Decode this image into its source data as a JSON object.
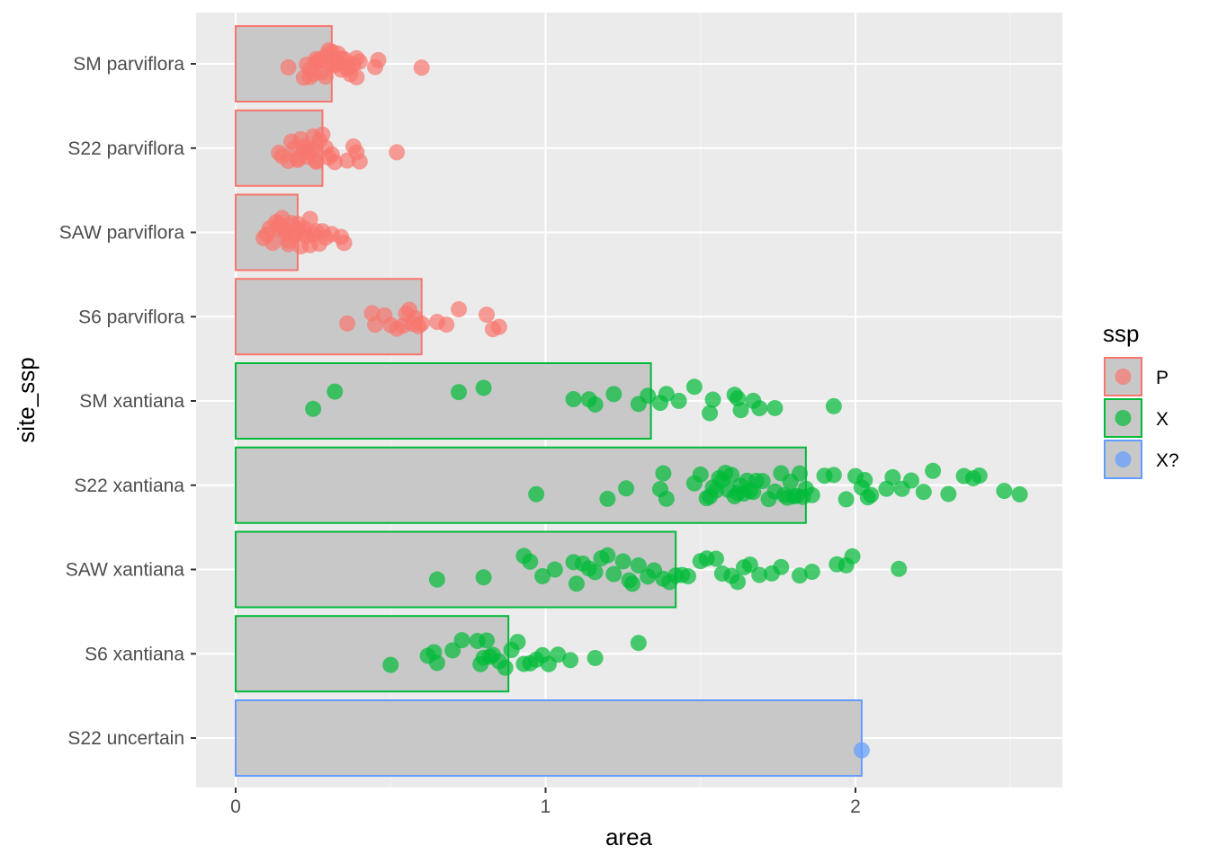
{
  "chart_data": {
    "type": "bar",
    "overlay": "jittered scatter points",
    "orientation": "horizontal",
    "xlabel": "area",
    "ylabel": "site_ssp",
    "xlim": [
      -0.13,
      2.67
    ],
    "xticks": [
      0,
      1,
      2
    ],
    "grid": true,
    "legend": {
      "title": "ssp",
      "position": "right",
      "entries": [
        {
          "label": "P",
          "color": "#F8766D"
        },
        {
          "label": "X",
          "color": "#00BA38"
        },
        {
          "label": "X?",
          "color": "#619CFF"
        }
      ]
    },
    "categories": [
      {
        "label": "SM parviflora",
        "ssp": "P",
        "bar": 0.31,
        "points": [
          0.17,
          0.22,
          0.23,
          0.24,
          0.25,
          0.26,
          0.27,
          0.28,
          0.29,
          0.3,
          0.31,
          0.32,
          0.33,
          0.34,
          0.35,
          0.36,
          0.37,
          0.38,
          0.39,
          0.4,
          0.45,
          0.46,
          0.6,
          0.24,
          0.27,
          0.31,
          0.34,
          0.36,
          0.39,
          0.26,
          0.29,
          0.33
        ]
      },
      {
        "label": "S22 parviflora",
        "ssp": "P",
        "bar": 0.28,
        "points": [
          0.14,
          0.15,
          0.17,
          0.18,
          0.19,
          0.2,
          0.21,
          0.22,
          0.23,
          0.24,
          0.25,
          0.26,
          0.27,
          0.28,
          0.29,
          0.3,
          0.31,
          0.32,
          0.36,
          0.38,
          0.39,
          0.4,
          0.52,
          0.2,
          0.23,
          0.26,
          0.22,
          0.25
        ]
      },
      {
        "label": "SAW parviflora",
        "ssp": "P",
        "bar": 0.2,
        "points": [
          0.09,
          0.1,
          0.11,
          0.12,
          0.13,
          0.14,
          0.15,
          0.16,
          0.17,
          0.18,
          0.19,
          0.2,
          0.21,
          0.22,
          0.23,
          0.24,
          0.25,
          0.26,
          0.27,
          0.28,
          0.29,
          0.31,
          0.34,
          0.35,
          0.14,
          0.17,
          0.19,
          0.22,
          0.16,
          0.2,
          0.24
        ]
      },
      {
        "label": "S6 parviflora",
        "ssp": "P",
        "bar": 0.6,
        "points": [
          0.36,
          0.44,
          0.45,
          0.48,
          0.5,
          0.52,
          0.54,
          0.55,
          0.56,
          0.57,
          0.58,
          0.59,
          0.6,
          0.65,
          0.68,
          0.72,
          0.81,
          0.83,
          0.85
        ]
      },
      {
        "label": "SM xantiana",
        "ssp": "X",
        "bar": 1.34,
        "points": [
          0.25,
          0.32,
          0.72,
          0.8,
          1.09,
          1.14,
          1.16,
          1.22,
          1.3,
          1.33,
          1.37,
          1.39,
          1.43,
          1.48,
          1.53,
          1.54,
          1.61,
          1.62,
          1.63,
          1.67,
          1.69,
          1.74,
          1.93
        ]
      },
      {
        "label": "S22 xantiana",
        "ssp": "X",
        "bar": 1.84,
        "points": [
          0.97,
          1.2,
          1.26,
          1.37,
          1.38,
          1.39,
          1.48,
          1.5,
          1.52,
          1.53,
          1.54,
          1.55,
          1.56,
          1.57,
          1.58,
          1.59,
          1.6,
          1.61,
          1.62,
          1.63,
          1.64,
          1.65,
          1.66,
          1.67,
          1.68,
          1.7,
          1.72,
          1.74,
          1.76,
          1.77,
          1.78,
          1.79,
          1.8,
          1.81,
          1.82,
          1.83,
          1.84,
          1.86,
          1.9,
          1.93,
          1.97,
          2.0,
          2.02,
          2.03,
          2.04,
          2.05,
          2.1,
          2.12,
          2.15,
          2.18,
          2.22,
          2.25,
          2.3,
          2.35,
          2.38,
          2.4,
          2.48,
          2.53
        ]
      },
      {
        "label": "SAW xantiana",
        "ssp": "X",
        "bar": 1.42,
        "points": [
          0.65,
          0.8,
          0.93,
          0.95,
          0.99,
          1.03,
          1.09,
          1.1,
          1.12,
          1.14,
          1.16,
          1.18,
          1.2,
          1.22,
          1.25,
          1.27,
          1.28,
          1.3,
          1.33,
          1.35,
          1.38,
          1.4,
          1.42,
          1.44,
          1.46,
          1.5,
          1.52,
          1.55,
          1.57,
          1.6,
          1.62,
          1.64,
          1.66,
          1.69,
          1.73,
          1.76,
          1.82,
          1.86,
          1.94,
          1.97,
          1.99,
          2.14
        ]
      },
      {
        "label": "S6 xantiana",
        "ssp": "X",
        "bar": 0.88,
        "points": [
          0.5,
          0.62,
          0.64,
          0.65,
          0.7,
          0.73,
          0.78,
          0.79,
          0.8,
          0.81,
          0.82,
          0.83,
          0.85,
          0.87,
          0.89,
          0.91,
          0.93,
          0.95,
          0.97,
          0.99,
          1.01,
          1.04,
          1.08,
          1.16,
          1.3
        ]
      },
      {
        "label": "S22 uncertain",
        "ssp": "X?",
        "bar": 2.02,
        "points": [
          2.02
        ]
      }
    ]
  }
}
